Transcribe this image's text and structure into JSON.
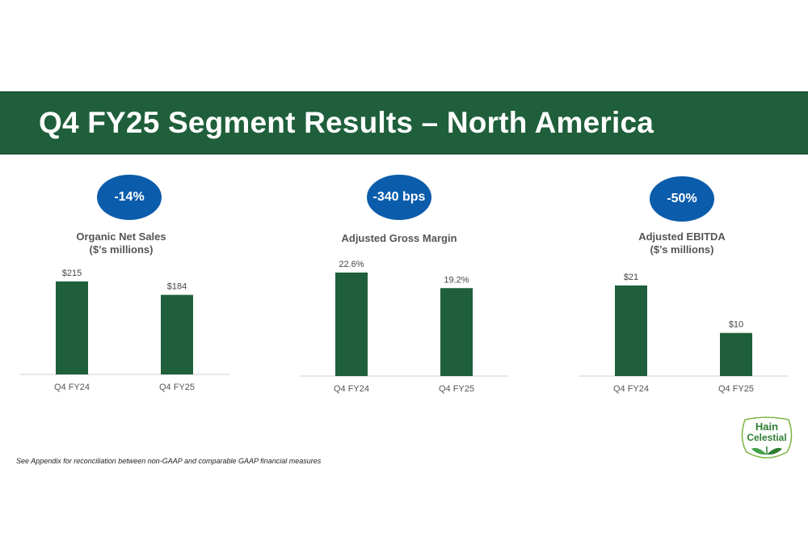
{
  "header": {
    "title": "Q4 FY25 Segment Results – North America"
  },
  "colors": {
    "banner": "#1f5f3b",
    "bar": "#1f5f3b",
    "badge": "#0b5cab",
    "logo_green": "#2e7d32"
  },
  "footnote": "See Appendix for reconciliation between non-GAAP and comparable GAAP financial measures",
  "logo": {
    "line1": "Hain",
    "line2": "Celestial"
  },
  "chart_data": [
    {
      "type": "bar",
      "badge": "-14%",
      "title": "Organic Net Sales",
      "subtitle": "($’s millions)",
      "categories": [
        "Q4 FY24",
        "Q4 FY25"
      ],
      "values": [
        215,
        184
      ],
      "data_labels": [
        "$215",
        "$184"
      ],
      "ylim": [
        0,
        215
      ],
      "grid": false
    },
    {
      "type": "bar",
      "badge": "-340 bps",
      "title": "Adjusted Gross Margin",
      "subtitle": "",
      "categories": [
        "Q4 FY24",
        "Q4 FY25"
      ],
      "values": [
        22.6,
        19.2
      ],
      "data_labels": [
        "22.6%",
        "19.2%"
      ],
      "ylim": [
        0,
        22.6
      ],
      "grid": false
    },
    {
      "type": "bar",
      "badge": "-50%",
      "title": "Adjusted EBITDA",
      "subtitle": "($’s millions)",
      "categories": [
        "Q4 FY24",
        "Q4 FY25"
      ],
      "values": [
        21,
        10
      ],
      "data_labels": [
        "$21",
        "$10"
      ],
      "ylim": [
        0,
        21
      ],
      "grid": false
    }
  ]
}
